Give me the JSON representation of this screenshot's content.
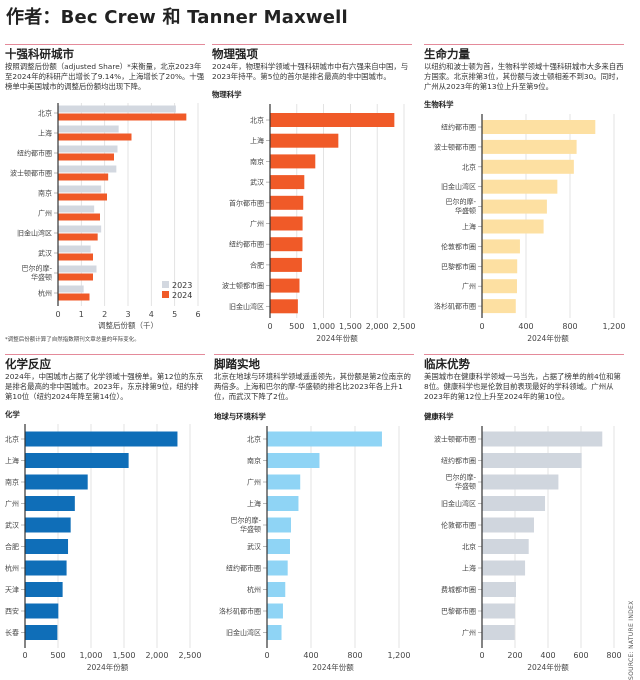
{
  "page_title": "作者：Bec Crew 和 Tanner Maxwell",
  "source": "SOURCE: NATURE INDEX",
  "footnote": "*调整后份额计算了自然指数期刊文章总量的年际变化。",
  "colors": {
    "divider": "#e48a9a",
    "orange": "#f05a28",
    "gray_2023": "#d3d8e0",
    "bio": "#fde0a2",
    "chem": "#0f6eb8",
    "earth": "#8fd4f5",
    "health": "#d0d6de"
  },
  "panels": [
    {
      "title": "十强科研城市",
      "desc": "按照调整后份额（adjusted Share）*来衡量，北京2023年至2024年的科研产出增长了9.14%，上海增长了20%。十强榜单中美国城市的调整后份额均出现下降。",
      "subtitle": ""
    },
    {
      "title": "物理强项",
      "desc": "2024年，物理科学领域十强科研城市中有六强来自中国，与2023年持平。第5位的首尔是排名最高的非中国城市。",
      "subtitle": "物理科学"
    },
    {
      "title": "生命力量",
      "desc": "以纽约和波士顿为首，生物科学领域十强科研城市大多来自西方国家。北京排第3位，其份额与波士顿相差不到30。同时，广州从2023年的第13位上升至第9位。",
      "subtitle": "生物科学"
    },
    {
      "title": "化学反应",
      "desc": "2024年，中国城市占据了化学领域十强榜单。第12位的东京是排名最高的非中国城市。2023年，东京排第9位，纽约排第10位（纽约2024年降至第14位）。",
      "subtitle": "化学"
    },
    {
      "title": "脚踏实地",
      "desc": "北京在地球与环境科学领域遥遥领先，其份额是第2位南京的两倍多。上海和巴尔的摩-华盛顿的排名比2023年各上升1位，而武汉下降了2位。",
      "subtitle": "地球与环境科学"
    },
    {
      "title": "临床优势",
      "desc": "美国城市在健康科学领域一马当先，占据了榜单的前4位和第8位。健康科学也是伦敦目前表现最好的学科领域。广州从2023年的第12位上升至2024年的第10位。",
      "subtitle": "健康科学"
    }
  ],
  "chart_data": [
    {
      "type": "bar",
      "orientation": "horizontal",
      "title": "十强科研城市",
      "xlabel": "调整后份额（千）",
      "xlim": [
        0,
        6
      ],
      "xticks": [
        "0",
        "1",
        "2",
        "3",
        "4",
        "5",
        "6"
      ],
      "tick_values": [
        0,
        1,
        2,
        3,
        4,
        5,
        6
      ],
      "grid": true,
      "legend": "bottom-right",
      "categories": [
        "北京",
        "上海",
        "纽约都市圈",
        "波士顿都市圈",
        "南京",
        "广州",
        "旧金山湾区",
        "武汉",
        "巴尔的摩-华盛顿",
        "杭州"
      ],
      "series": [
        {
          "name": "2023",
          "color": "#d3d8e0",
          "values": [
            5.05,
            2.6,
            2.55,
            2.5,
            1.85,
            1.55,
            1.85,
            1.4,
            1.65,
            1.1
          ]
        },
        {
          "name": "2024",
          "color": "#f05a28",
          "values": [
            5.5,
            3.15,
            2.4,
            2.15,
            2.1,
            1.8,
            1.7,
            1.5,
            1.5,
            1.35
          ]
        }
      ]
    },
    {
      "type": "bar",
      "orientation": "horizontal",
      "title": "物理科学",
      "xlabel": "2024年份额",
      "xlim": [
        0,
        2500
      ],
      "xticks": [
        "0",
        "500",
        "1,000",
        "1,500",
        "2,000",
        "2,500"
      ],
      "tick_values": [
        0,
        500,
        1000,
        1500,
        2000,
        2500
      ],
      "grid": true,
      "categories": [
        "北京",
        "上海",
        "南京",
        "武汉",
        "首尔都市圈",
        "广州",
        "纽约都市圈",
        "合肥",
        "波士顿都市圈",
        "旧金山湾区"
      ],
      "series": [
        {
          "color": "#f05a28",
          "values": [
            2320,
            1275,
            845,
            640,
            620,
            608,
            606,
            595,
            550,
            520
          ]
        }
      ]
    },
    {
      "type": "bar",
      "orientation": "horizontal",
      "title": "生物科学",
      "xlabel": "2024年份额",
      "xlim": [
        0,
        1200
      ],
      "xticks": [
        "0",
        "400",
        "800",
        "1,200"
      ],
      "tick_values": [
        0,
        400,
        800,
        1200
      ],
      "grid": true,
      "categories": [
        "纽约都市圈",
        "波士顿都市圈",
        "北京",
        "旧金山湾区",
        "巴尔的摩-华盛顿",
        "上海",
        "伦敦都市圈",
        "巴黎都市圈",
        "广州",
        "洛杉矶都市圈"
      ],
      "series": [
        {
          "color": "#fde0a2",
          "values": [
            1030,
            860,
            835,
            685,
            590,
            560,
            345,
            320,
            318,
            307
          ]
        }
      ]
    },
    {
      "type": "bar",
      "orientation": "horizontal",
      "title": "化学",
      "xlabel": "2024年份额",
      "xlim": [
        0,
        2500
      ],
      "xticks": [
        "0",
        "500",
        "1,000",
        "1,500",
        "2,000",
        "2,500"
      ],
      "tick_values": [
        0,
        500,
        1000,
        1500,
        2000,
        2500
      ],
      "grid": true,
      "categories": [
        "北京",
        "上海",
        "南京",
        "广州",
        "武汉",
        "合肥",
        "杭州",
        "天津",
        "西安",
        "长春"
      ],
      "series": [
        {
          "color": "#0f6eb8",
          "values": [
            2310,
            1570,
            950,
            755,
            692,
            652,
            630,
            570,
            505,
            490
          ]
        }
      ]
    },
    {
      "type": "bar",
      "orientation": "horizontal",
      "title": "地球与环境科学",
      "xlabel": "2024年份额",
      "xlim": [
        0,
        1200
      ],
      "xticks": [
        "0",
        "400",
        "800",
        "1,200"
      ],
      "tick_values": [
        0,
        400,
        800,
        1200
      ],
      "grid": true,
      "categories": [
        "北京",
        "南京",
        "广州",
        "上海",
        "巴尔的摩-华盛顿",
        "武汉",
        "纽约都市圈",
        "杭州",
        "洛杉矶都市圈",
        "旧金山湾区"
      ],
      "series": [
        {
          "color": "#8fd4f5",
          "values": [
            1045,
            477,
            302,
            286,
            218,
            209,
            188,
            166,
            145,
            132
          ]
        }
      ]
    },
    {
      "type": "bar",
      "orientation": "horizontal",
      "title": "健康科学",
      "xlabel": "2024年份额",
      "xlim": [
        0,
        800
      ],
      "xticks": [
        "0",
        "200",
        "400",
        "600",
        "800"
      ],
      "tick_values": [
        0,
        200,
        400,
        600,
        800
      ],
      "grid": true,
      "categories": [
        "波士顿都市圈",
        "纽约都市圈",
        "巴尔的摩-华盛顿",
        "旧金山湾区",
        "伦敦都市圈",
        "北京",
        "上海",
        "费城都市圈",
        "巴黎都市圈",
        "广州"
      ],
      "series": [
        {
          "color": "#d0d6de",
          "values": [
            729,
            604,
            463,
            382,
            315,
            283,
            261,
            206,
            200,
            198
          ]
        }
      ]
    }
  ]
}
